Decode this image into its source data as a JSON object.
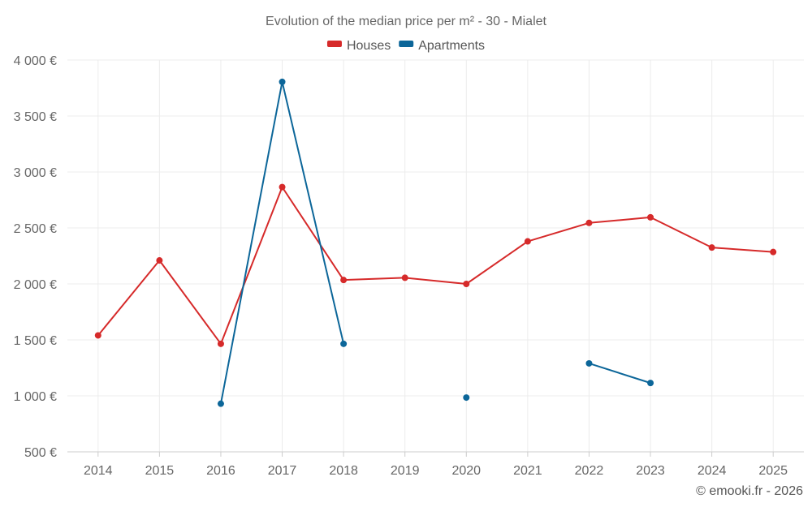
{
  "chart_data": {
    "type": "line",
    "title": "Evolution of the median price per m² - 30 - Mialet",
    "categories": [
      "2014",
      "2015",
      "2016",
      "2017",
      "2018",
      "2019",
      "2020",
      "2021",
      "2022",
      "2023",
      "2024",
      "2025"
    ],
    "series": [
      {
        "name": "Houses",
        "color": "#d62a2a",
        "values": [
          1540,
          2210,
          1465,
          2865,
          2035,
          2055,
          2000,
          2380,
          2545,
          2595,
          2325,
          2285
        ]
      },
      {
        "name": "Apartments",
        "color": "#0c6699",
        "values": [
          null,
          null,
          930,
          3805,
          1465,
          null,
          985,
          null,
          1290,
          1115,
          null,
          null
        ]
      }
    ],
    "ylim": [
      500,
      4000
    ],
    "yticks": [
      500,
      1000,
      1500,
      2000,
      2500,
      3000,
      3500,
      4000
    ],
    "ytick_labels": [
      "500 €",
      "1 000 €",
      "1 500 €",
      "2 000 €",
      "2 500 €",
      "3 000 €",
      "3 500 €",
      "4 000 €"
    ],
    "xlabel": "",
    "ylabel": "",
    "legend_position": "top-center"
  },
  "footer": "© emooki.fr - 2026"
}
